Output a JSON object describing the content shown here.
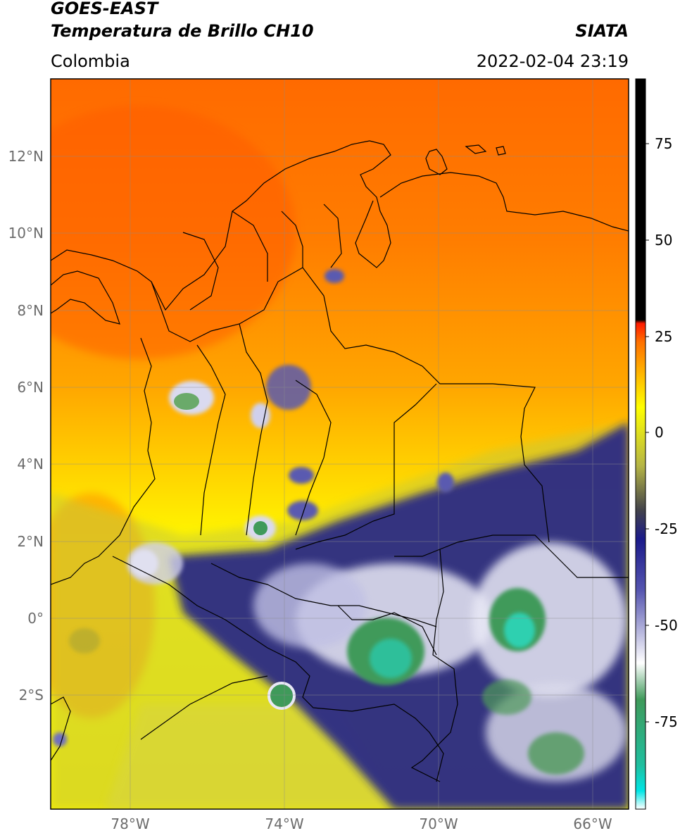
{
  "header": {
    "title_line1": "GOES-EAST",
    "title_line2": "Temperatura de Brillo CH10",
    "subtitle": "Colombia",
    "brand": "SIATA",
    "timestamp": "2022-02-04 23:19"
  },
  "map": {
    "lat_labels": [
      "12°N",
      "10°N",
      "8°N",
      "6°N",
      "4°N",
      "2°N",
      "0°",
      "2°S"
    ],
    "lon_labels": [
      "78°W",
      "74°W",
      "70°W",
      "66°W"
    ]
  },
  "colorbar": {
    "tick_labels": [
      "75",
      "50",
      "25",
      "0",
      "-25",
      "-50",
      "-75"
    ],
    "colors": {
      "black": "#000000",
      "red": "#ff1a00",
      "orange": "#ff8c00",
      "yellow": "#ffff00",
      "olive": "#b5b546",
      "navy": "#1a1a8a",
      "white": "#ffffff",
      "green": "#3f9a5a",
      "cyan": "#00e5e5"
    }
  }
}
